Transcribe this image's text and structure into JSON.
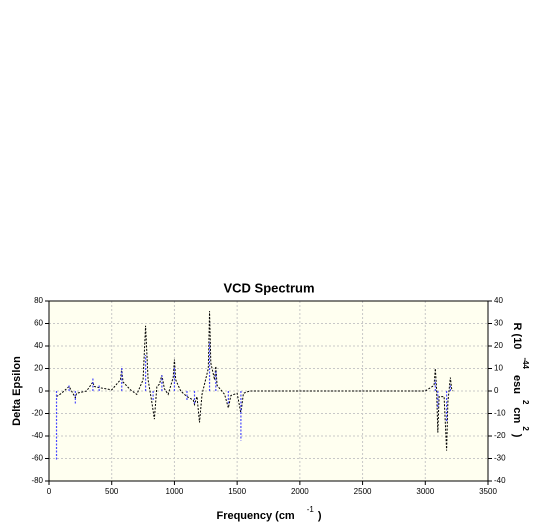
{
  "chart_data": {
    "type": "line",
    "title": "VCD Spectrum",
    "xlabel": [
      "Frequency (cm",
      "-1",
      ")"
    ],
    "ylabel": "Delta Epsilon",
    "y2label": [
      "R (10",
      "-44",
      "esu",
      "2",
      "cm",
      "2",
      ")"
    ],
    "xlim": [
      0,
      3500
    ],
    "xticks": [
      0,
      500,
      1000,
      1500,
      2000,
      2500,
      3000,
      3500
    ],
    "ylim": [
      -80,
      80
    ],
    "yticks": [
      -80,
      -60,
      -40,
      -20,
      0,
      20,
      40,
      60,
      80
    ],
    "y2lim": [
      -40,
      40
    ],
    "y2ticks": [
      -40,
      -30,
      -20,
      -10,
      0,
      10,
      20,
      30,
      40
    ],
    "grid": true,
    "background": "#fffff0",
    "series": [
      {
        "type": "line",
        "color": "#000000",
        "dashed": true,
        "x": [
          60,
          100,
          150,
          160,
          170,
          200,
          210,
          220,
          300,
          350,
          360,
          400,
          500,
          570,
          580,
          590,
          650,
          700,
          750,
          770,
          790,
          820,
          840,
          860,
          880,
          900,
          920,
          950,
          990,
          1000,
          1010,
          1050,
          1100,
          1150,
          1160,
          1180,
          1200,
          1220,
          1270,
          1280,
          1290,
          1320,
          1330,
          1340,
          1400,
          1430,
          1450,
          1500,
          1530,
          1550,
          1600,
          2000,
          2500,
          3000,
          3070,
          3080,
          3090,
          3100,
          3110,
          3150,
          3170,
          3180,
          3200,
          3210,
          3220
        ],
        "values": [
          -5,
          -2,
          3,
          4,
          2,
          -4,
          -6,
          -2,
          0,
          8,
          4,
          3,
          1,
          10,
          20,
          8,
          1,
          -3,
          10,
          58,
          10,
          -10,
          -25,
          4,
          6,
          14,
          2,
          -3,
          12,
          28,
          10,
          0,
          -5,
          -8,
          -12,
          -5,
          -28,
          -3,
          20,
          71,
          25,
          10,
          22,
          5,
          -3,
          -15,
          -4,
          -2,
          -20,
          -2,
          0,
          0,
          0,
          0,
          5,
          20,
          2,
          -37,
          -5,
          -5,
          -53,
          -10,
          12,
          2,
          0
        ]
      },
      {
        "type": "stick",
        "color": "#4a4aff",
        "axis": "y2",
        "dashed": true,
        "x": [
          60,
          160,
          210,
          350,
          400,
          580,
          770,
          830,
          900,
          1000,
          1100,
          1160,
          1280,
          1330,
          1430,
          1530,
          3080,
          3100,
          3170,
          3200
        ],
        "values": [
          -31,
          3,
          -6,
          6,
          3,
          11,
          16,
          -4,
          7,
          11,
          -4,
          -6,
          22,
          9,
          -6,
          -22,
          5,
          -8,
          -14,
          3
        ]
      }
    ]
  }
}
